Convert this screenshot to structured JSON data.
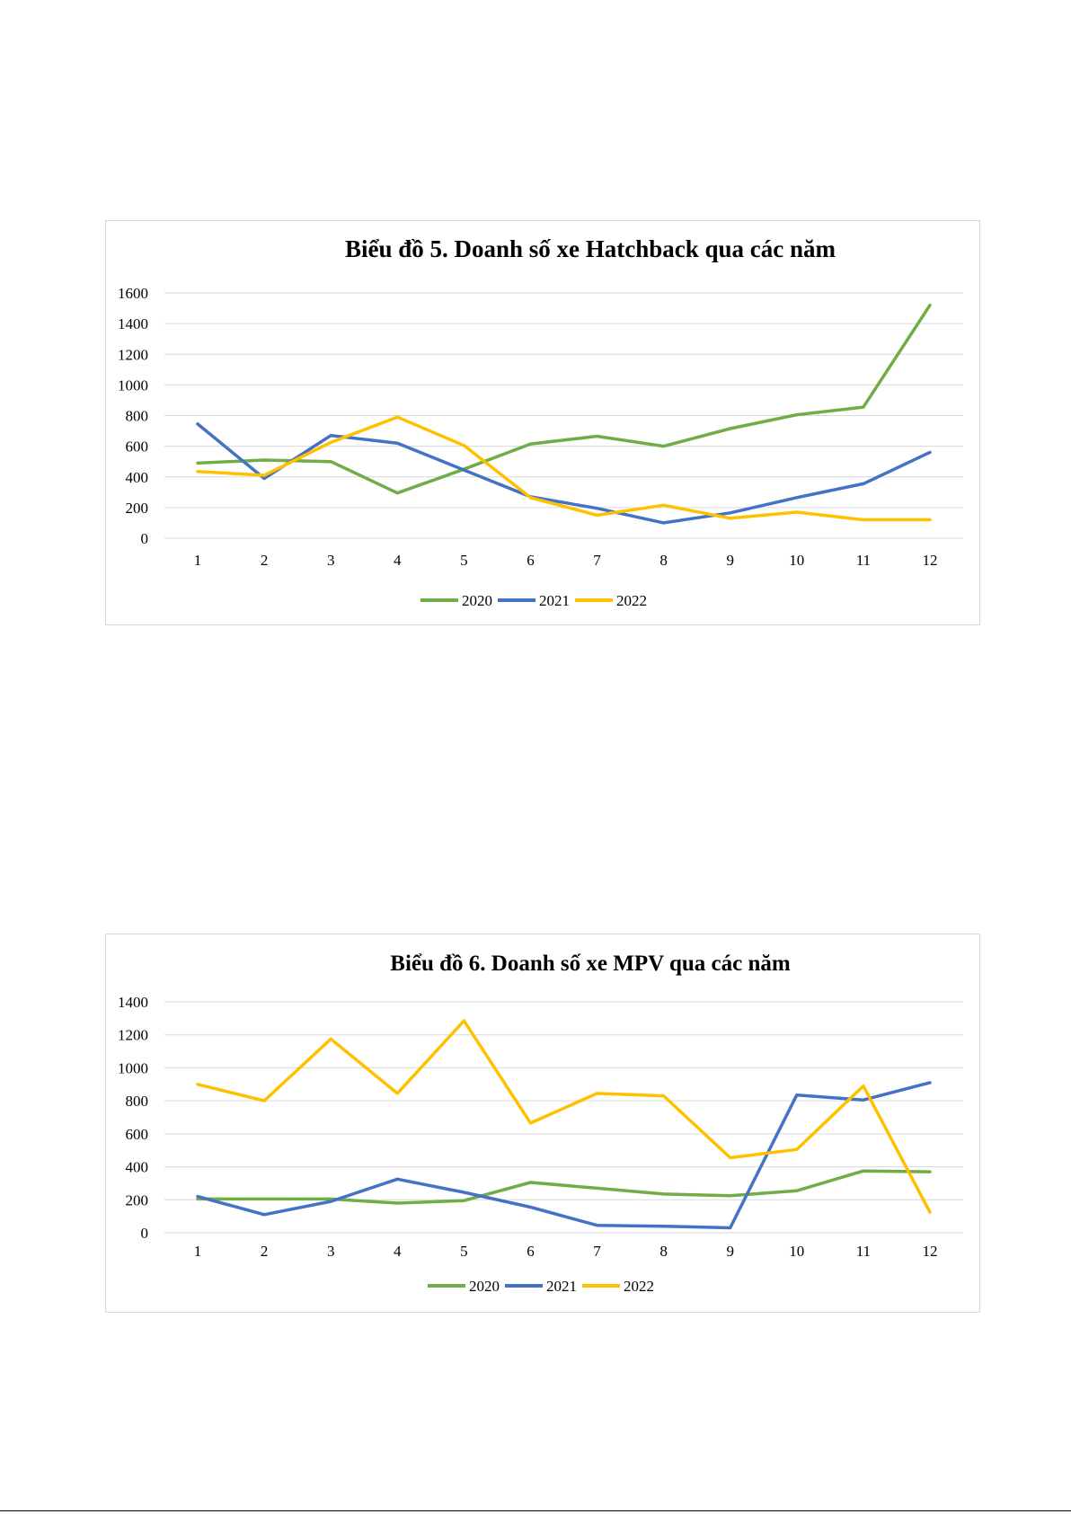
{
  "chart_data": [
    {
      "type": "line",
      "title": "Biểu đồ 5. Doanh số xe Hatchback qua các năm",
      "xlabel": "",
      "ylabel": "",
      "categories": [
        "1",
        "2",
        "3",
        "4",
        "5",
        "6",
        "7",
        "8",
        "9",
        "10",
        "11",
        "12"
      ],
      "ylim": [
        0,
        1600
      ],
      "yticks": [
        0,
        200,
        400,
        600,
        800,
        1000,
        1200,
        1400,
        1600
      ],
      "grid": true,
      "legend_position": "bottom",
      "series": [
        {
          "name": "2020",
          "color": "#70AD47",
          "values": [
            490,
            510,
            500,
            295,
            450,
            615,
            665,
            600,
            715,
            805,
            855,
            1520
          ]
        },
        {
          "name": "2021",
          "color": "#4472C4",
          "values": [
            745,
            390,
            670,
            620,
            445,
            270,
            195,
            100,
            165,
            265,
            355,
            560
          ]
        },
        {
          "name": "2022",
          "color": "#FFC000",
          "values": [
            435,
            410,
            625,
            790,
            605,
            265,
            150,
            215,
            130,
            170,
            120,
            120
          ]
        }
      ]
    },
    {
      "type": "line",
      "title": "Biểu đồ 6. Doanh số xe MPV qua các năm",
      "xlabel": "",
      "ylabel": "",
      "categories": [
        "1",
        "2",
        "3",
        "4",
        "5",
        "6",
        "7",
        "8",
        "9",
        "10",
        "11",
        "12"
      ],
      "ylim": [
        0,
        1400
      ],
      "yticks": [
        0,
        200,
        400,
        600,
        800,
        1000,
        1200,
        1400
      ],
      "grid": true,
      "legend_position": "bottom",
      "series": [
        {
          "name": "2020",
          "color": "#70AD47",
          "values": [
            205,
            205,
            205,
            180,
            195,
            305,
            270,
            235,
            225,
            255,
            375,
            370
          ]
        },
        {
          "name": "2021",
          "color": "#4472C4",
          "values": [
            220,
            110,
            190,
            325,
            245,
            155,
            45,
            40,
            30,
            835,
            805,
            910
          ]
        },
        {
          "name": "2022",
          "color": "#FFC000",
          "values": [
            900,
            800,
            1175,
            845,
            1285,
            665,
            845,
            830,
            455,
            505,
            890,
            125
          ]
        }
      ]
    }
  ]
}
